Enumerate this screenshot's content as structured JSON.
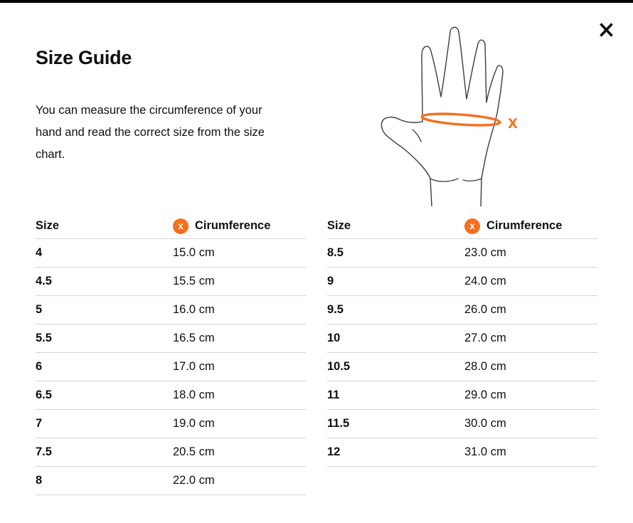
{
  "modal": {
    "title": "Size Guide",
    "description_lines": [
      "You can measure the circumference of your",
      "hand and read the correct size from the size",
      "chart."
    ],
    "close_icon": "✕"
  },
  "illustration": {
    "name": "hand-measurement-diagram",
    "measure_label": "x"
  },
  "tables": {
    "header": {
      "size": "Size",
      "circumference": "Cirumference",
      "badge": "x"
    },
    "left_rows": [
      {
        "size": "4",
        "circumference": "15.0 cm"
      },
      {
        "size": "4.5",
        "circumference": "15.5 cm"
      },
      {
        "size": "5",
        "circumference": "16.0 cm"
      },
      {
        "size": "5.5",
        "circumference": "16.5 cm"
      },
      {
        "size": "6",
        "circumference": "17.0 cm"
      },
      {
        "size": "6.5",
        "circumference": "18.0 cm"
      },
      {
        "size": "7",
        "circumference": "19.0 cm"
      },
      {
        "size": "7.5",
        "circumference": "20.5 cm"
      },
      {
        "size": "8",
        "circumference": "22.0 cm"
      }
    ],
    "right_rows": [
      {
        "size": "8.5",
        "circumference": "23.0 cm"
      },
      {
        "size": "9",
        "circumference": "24.0 cm"
      },
      {
        "size": "9.5",
        "circumference": "26.0 cm"
      },
      {
        "size": "10",
        "circumference": "27.0 cm"
      },
      {
        "size": "10.5",
        "circumference": "28.0 cm"
      },
      {
        "size": "11",
        "circumference": "29.0 cm"
      },
      {
        "size": "11.5",
        "circumference": "30.0 cm"
      },
      {
        "size": "12",
        "circumference": "31.0 cm"
      }
    ]
  },
  "colors": {
    "accent": "#f76e1e",
    "text": "#0f0f0f",
    "border": "#d4d4d4",
    "top_bar": "#000000",
    "hand_stroke": "#3c3c3c"
  }
}
